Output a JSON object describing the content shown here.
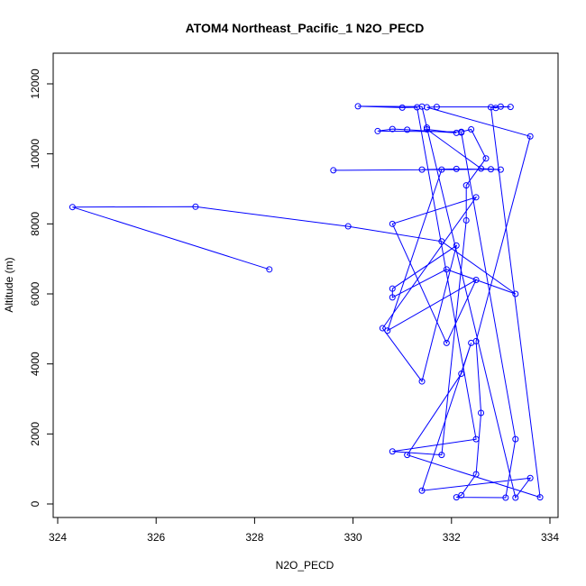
{
  "chart_data": {
    "type": "line",
    "title": "ATOM4 Northeast_Pacific_1 N2O_PECD",
    "xlabel": "N2O_PECD",
    "ylabel": "Altitude (m)",
    "xlim": [
      324,
      334
    ],
    "ylim": [
      0,
      12000
    ],
    "x_ticks": [
      "324",
      "326",
      "328",
      "330",
      "332",
      "334"
    ],
    "y_ticks": [
      "0",
      "2000",
      "4000",
      "6000",
      "8000",
      "10000",
      "12000"
    ],
    "grid": false,
    "series": [
      {
        "color": "#0000ff",
        "marker": "open-circle",
        "points": [
          [
            328.3,
            6700
          ],
          [
            324.3,
            8480
          ],
          [
            326.8,
            8490
          ],
          [
            329.9,
            7930
          ],
          [
            331.8,
            7500
          ],
          [
            333.3,
            6000
          ],
          [
            331.9,
            6700
          ],
          [
            330.8,
            5900
          ],
          [
            330.8,
            6150
          ],
          [
            332.1,
            7380
          ],
          [
            331.4,
            3500
          ],
          [
            330.6,
            5020
          ],
          [
            332.5,
            8760
          ],
          [
            330.8,
            8000
          ],
          [
            331.9,
            4600
          ],
          [
            332.5,
            6400
          ],
          [
            330.7,
            4950
          ],
          [
            331.8,
            9550
          ],
          [
            329.6,
            9530
          ],
          [
            332.8,
            9560
          ],
          [
            331.4,
            9550
          ],
          [
            332.1,
            9570
          ],
          [
            333.0,
            9550
          ],
          [
            332.6,
            9580
          ],
          [
            331.5,
            10700
          ],
          [
            332.1,
            10600
          ],
          [
            331.1,
            10690
          ],
          [
            330.8,
            10710
          ],
          [
            330.5,
            10650
          ],
          [
            332.2,
            10630
          ],
          [
            332.4,
            10700
          ],
          [
            332.7,
            9870
          ],
          [
            332.3,
            9100
          ],
          [
            332.3,
            8100
          ],
          [
            331.8,
            1400
          ],
          [
            330.8,
            1500
          ],
          [
            332.5,
            1850
          ],
          [
            331.3,
            11330
          ],
          [
            331.0,
            11320
          ],
          [
            330.1,
            11360
          ],
          [
            331.4,
            11350
          ],
          [
            331.5,
            10750
          ],
          [
            333.3,
            180
          ],
          [
            333.6,
            740
          ],
          [
            331.4,
            380
          ],
          [
            332.4,
            4600
          ],
          [
            332.2,
            3720
          ],
          [
            331.1,
            1400
          ],
          [
            333.8,
            190
          ],
          [
            332.8,
            11330
          ],
          [
            332.9,
            11310
          ],
          [
            333.0,
            11350
          ],
          [
            333.2,
            11340
          ],
          [
            331.7,
            11340
          ],
          [
            331.5,
            11330
          ],
          [
            333.6,
            10500
          ],
          [
            332.5,
            4650
          ],
          [
            332.6,
            2600
          ],
          [
            332.5,
            850
          ],
          [
            332.2,
            250
          ],
          [
            332.1,
            190
          ],
          [
            333.1,
            180
          ],
          [
            333.3,
            1850
          ],
          [
            332.2,
            10610
          ]
        ]
      }
    ]
  }
}
